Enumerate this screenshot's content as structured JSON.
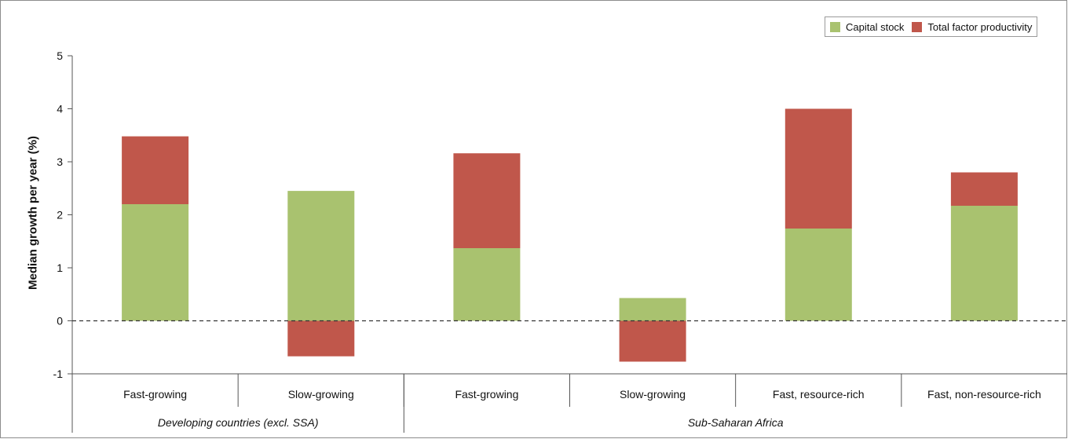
{
  "chart_data": {
    "type": "bar",
    "stacked": true,
    "ylabel": "Median growth per year (%)",
    "xlabel": "",
    "ylim": [
      -1,
      5
    ],
    "yticks": [
      -1,
      0,
      1,
      2,
      3,
      4,
      5
    ],
    "reference_line": {
      "y": 0,
      "style": "dashed"
    },
    "grid": false,
    "legend_position": "top-right",
    "categories": [
      "Fast-growing",
      "Slow-growing",
      "Fast-growing",
      "Slow-growing",
      "Fast, resource-rich",
      "Fast, non-resource-rich"
    ],
    "groups": [
      {
        "label": "Developing countries (excl. SSA)",
        "category_count": 2
      },
      {
        "label": "Sub-Saharan Africa",
        "category_count": 4
      }
    ],
    "series": [
      {
        "name": "Capital stock",
        "color": "#a9c26f",
        "values": [
          2.2,
          2.45,
          1.37,
          0.43,
          1.74,
          2.17
        ]
      },
      {
        "name": "Total factor productivity",
        "color": "#c0574b",
        "values": [
          1.28,
          -0.67,
          1.79,
          -0.77,
          2.26,
          0.63
        ]
      }
    ]
  }
}
